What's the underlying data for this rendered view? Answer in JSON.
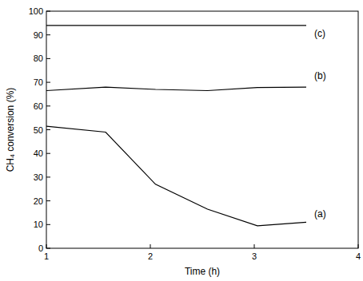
{
  "chart_data": {
    "type": "line",
    "x_label": "Time (h)",
    "y_label": "CH₄ conversion (%)",
    "xlim": [
      1,
      4
    ],
    "xticks": [
      1,
      2,
      3,
      4
    ],
    "ylim": [
      0,
      100
    ],
    "yticks": [
      0,
      10,
      20,
      30,
      40,
      50,
      60,
      70,
      80,
      90,
      100
    ],
    "grid": false,
    "series": [
      {
        "name": "(a)",
        "color": "#000000",
        "x": [
          1.0,
          1.57,
          2.05,
          2.55,
          3.03,
          3.5
        ],
        "values": [
          51.5,
          49,
          27,
          16.5,
          9.5,
          11
        ]
      },
      {
        "name": "(b)",
        "color": "#000000",
        "x": [
          1.0,
          1.57,
          2.05,
          2.55,
          3.03,
          3.5
        ],
        "values": [
          66.5,
          68,
          67,
          66.5,
          67.8,
          68
        ]
      },
      {
        "name": "(c)",
        "color": "#000000",
        "x": [
          1.0,
          1.57,
          2.05,
          2.55,
          3.03,
          3.5
        ],
        "values": [
          94,
          94,
          94,
          94,
          94,
          94
        ]
      }
    ]
  }
}
